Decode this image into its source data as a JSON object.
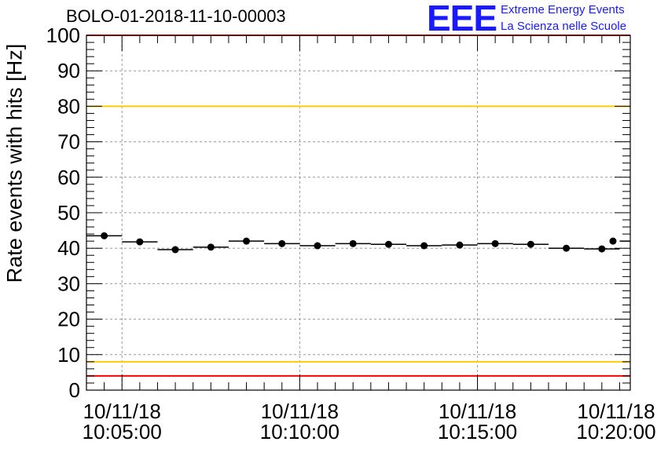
{
  "title": "BOLO-01-2018-11-10-00003",
  "logo": {
    "mark": "EEE",
    "line1": "Extreme Energy Events",
    "line2": "La Scienza nelle Scuole"
  },
  "colors": {
    "markers": "#000000",
    "limit_outer": "#ff0000",
    "limit_inner": "#ffcc00",
    "logo": "#1a1aff"
  },
  "chart_data": {
    "type": "scatter",
    "title": "BOLO-01-2018-11-10-00003",
    "xlabel": "",
    "ylabel": "Rate events with hits [Hz]",
    "ylim": [
      0,
      100
    ],
    "xlim_minutes": [
      4.0,
      19.3
    ],
    "grid": true,
    "x_ticks": [
      {
        "minute": 5,
        "date": "10/11/18",
        "time": "10:05:00"
      },
      {
        "minute": 10,
        "date": "10/11/18",
        "time": "10:10:00"
      },
      {
        "minute": 15,
        "date": "10/11/18",
        "time": "10:15:00"
      },
      {
        "minute": 20,
        "date": "10/11/18",
        "time": "10:20:00"
      }
    ],
    "y_ticks": [
      0,
      10,
      20,
      30,
      40,
      50,
      60,
      70,
      80,
      90,
      100
    ],
    "bin_width_minutes": 1.0,
    "series": [
      {
        "x": [
          4.5,
          5.5,
          6.5,
          7.5,
          8.5,
          9.5,
          10.5,
          11.5,
          12.5,
          13.5,
          14.5,
          15.5,
          16.5,
          17.5,
          18.5,
          19.5
        ],
        "values": [
          43.5,
          41.8,
          39.6,
          40.3,
          42.0,
          41.3,
          40.7,
          41.3,
          41.1,
          40.7,
          40.9,
          41.3,
          41.1,
          40.0,
          39.8,
          42.0
        ]
      }
    ],
    "reference_lines": [
      {
        "y": 100,
        "color": "#ff0000"
      },
      {
        "y": 80,
        "color": "#ffcc00"
      },
      {
        "y": 8,
        "color": "#ffcc00"
      },
      {
        "y": 4,
        "color": "#ff0000"
      }
    ]
  }
}
